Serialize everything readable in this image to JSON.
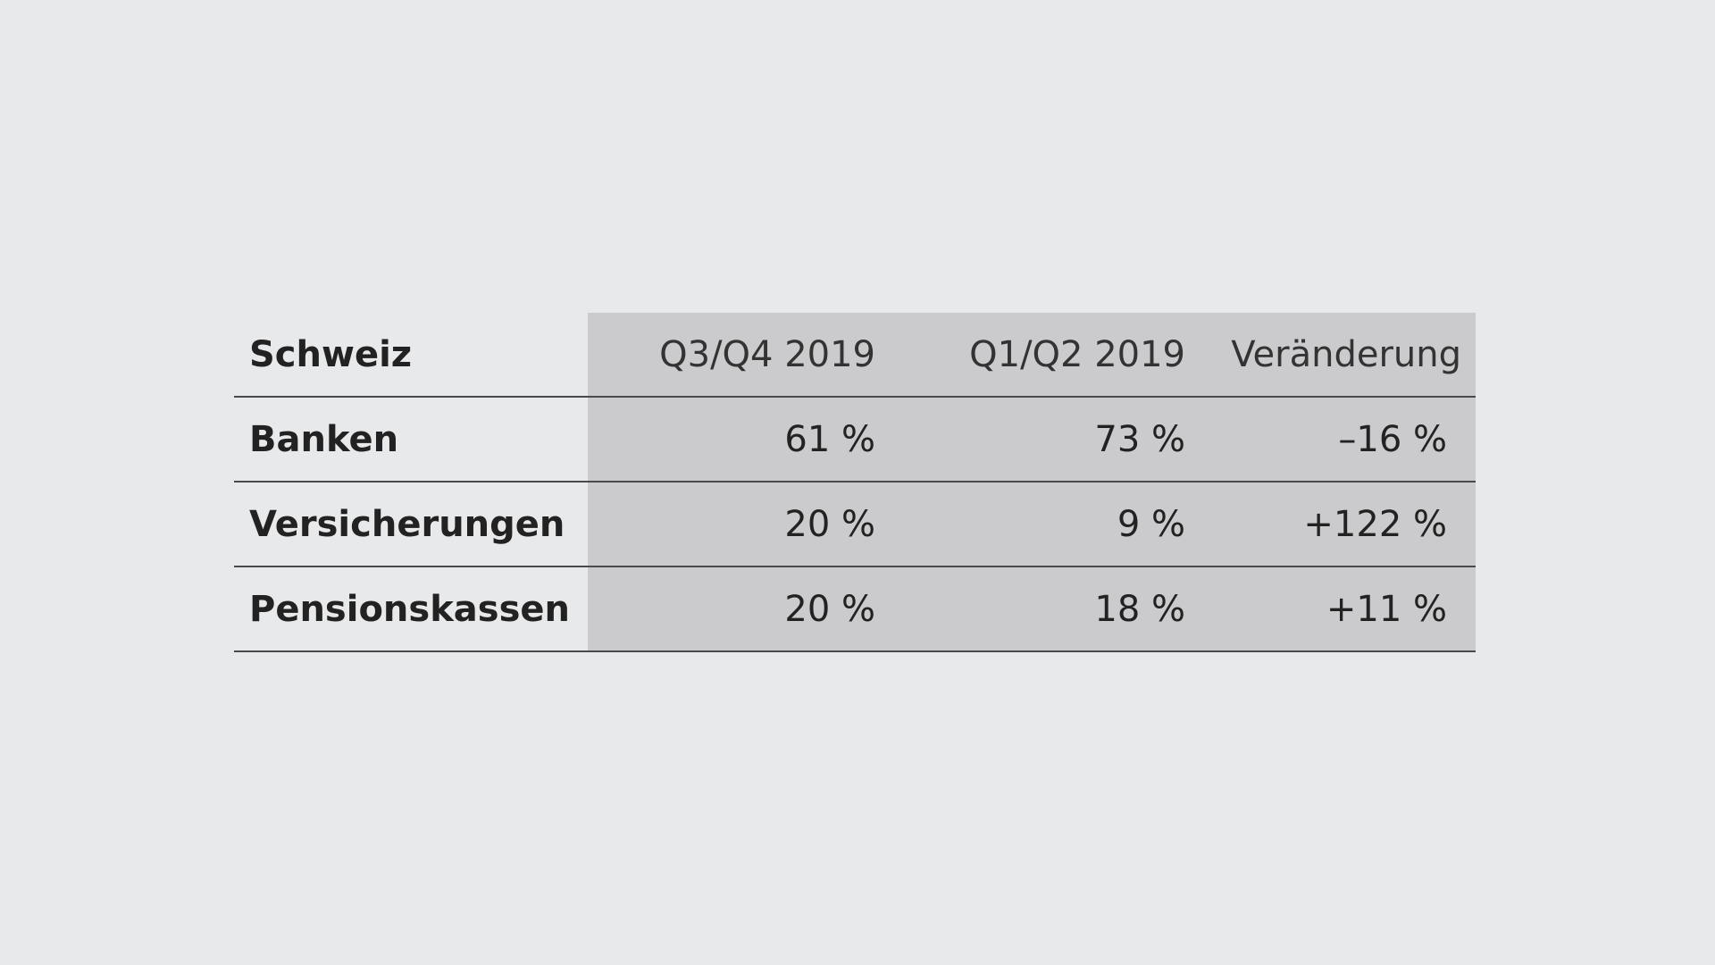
{
  "chart_data": {
    "type": "table",
    "header": {
      "label": "Schweiz",
      "columns": [
        "Q3/Q4 2019",
        "Q1/Q2 2019",
        "Veränderung"
      ]
    },
    "rows": [
      {
        "label": "Banken",
        "cells": [
          "61 %",
          "73 %",
          "–16 %"
        ]
      },
      {
        "label": "Versicherungen",
        "cells": [
          "20 %",
          "9 %",
          "+122 %"
        ]
      },
      {
        "label": "Pensionskassen",
        "cells": [
          "20 %",
          "18 %",
          "+11 %"
        ]
      }
    ],
    "colors": {
      "background": "#e8e9eb",
      "data_fill": "#cbcbcd",
      "rule": "#4a4a4a",
      "text": "#222222"
    }
  }
}
